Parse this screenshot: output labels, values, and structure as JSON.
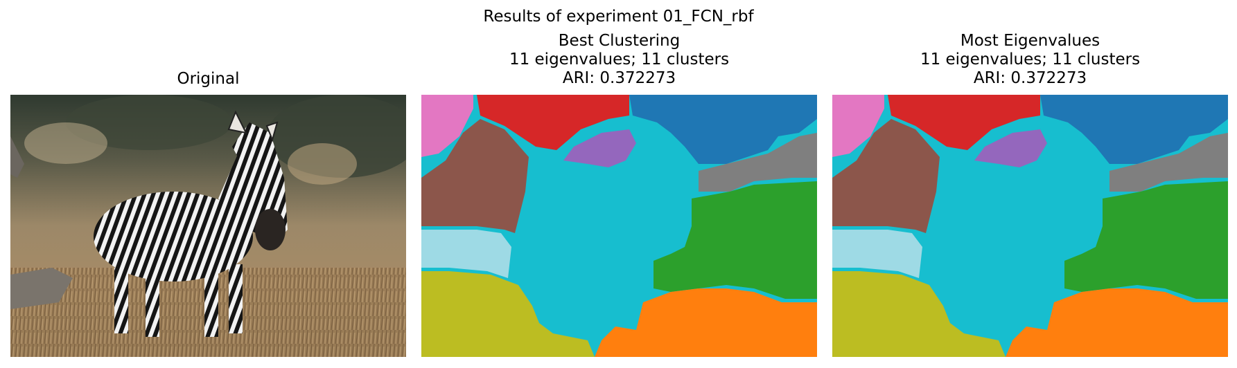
{
  "figure": {
    "suptitle": "Results of experiment 01_FCN_rbf"
  },
  "panels": [
    {
      "id": "original",
      "title_lines": [
        "Original"
      ]
    },
    {
      "id": "best",
      "title_lines": [
        "Best Clustering",
        "11 eigenvalues; 11 clusters",
        "ARI: 0.372273"
      ]
    },
    {
      "id": "most",
      "title_lines": [
        "Most Eigenvalues",
        "11 eigenvalues; 11 clusters",
        "ARI: 0.372273"
      ]
    }
  ],
  "cluster_colors": {
    "pink": "#e377c2",
    "red": "#d62728",
    "blue": "#1f77b4",
    "brown": "#8c564b",
    "purple": "#9467bd",
    "gray": "#7f7f7f",
    "green": "#2ca02c",
    "light_cyan": "#9edae5",
    "olive": "#bcbd22",
    "orange": "#ff7f0e",
    "cyan": "#17becf"
  },
  "photo_subject": "zebra-standing-in-dry-grass"
}
